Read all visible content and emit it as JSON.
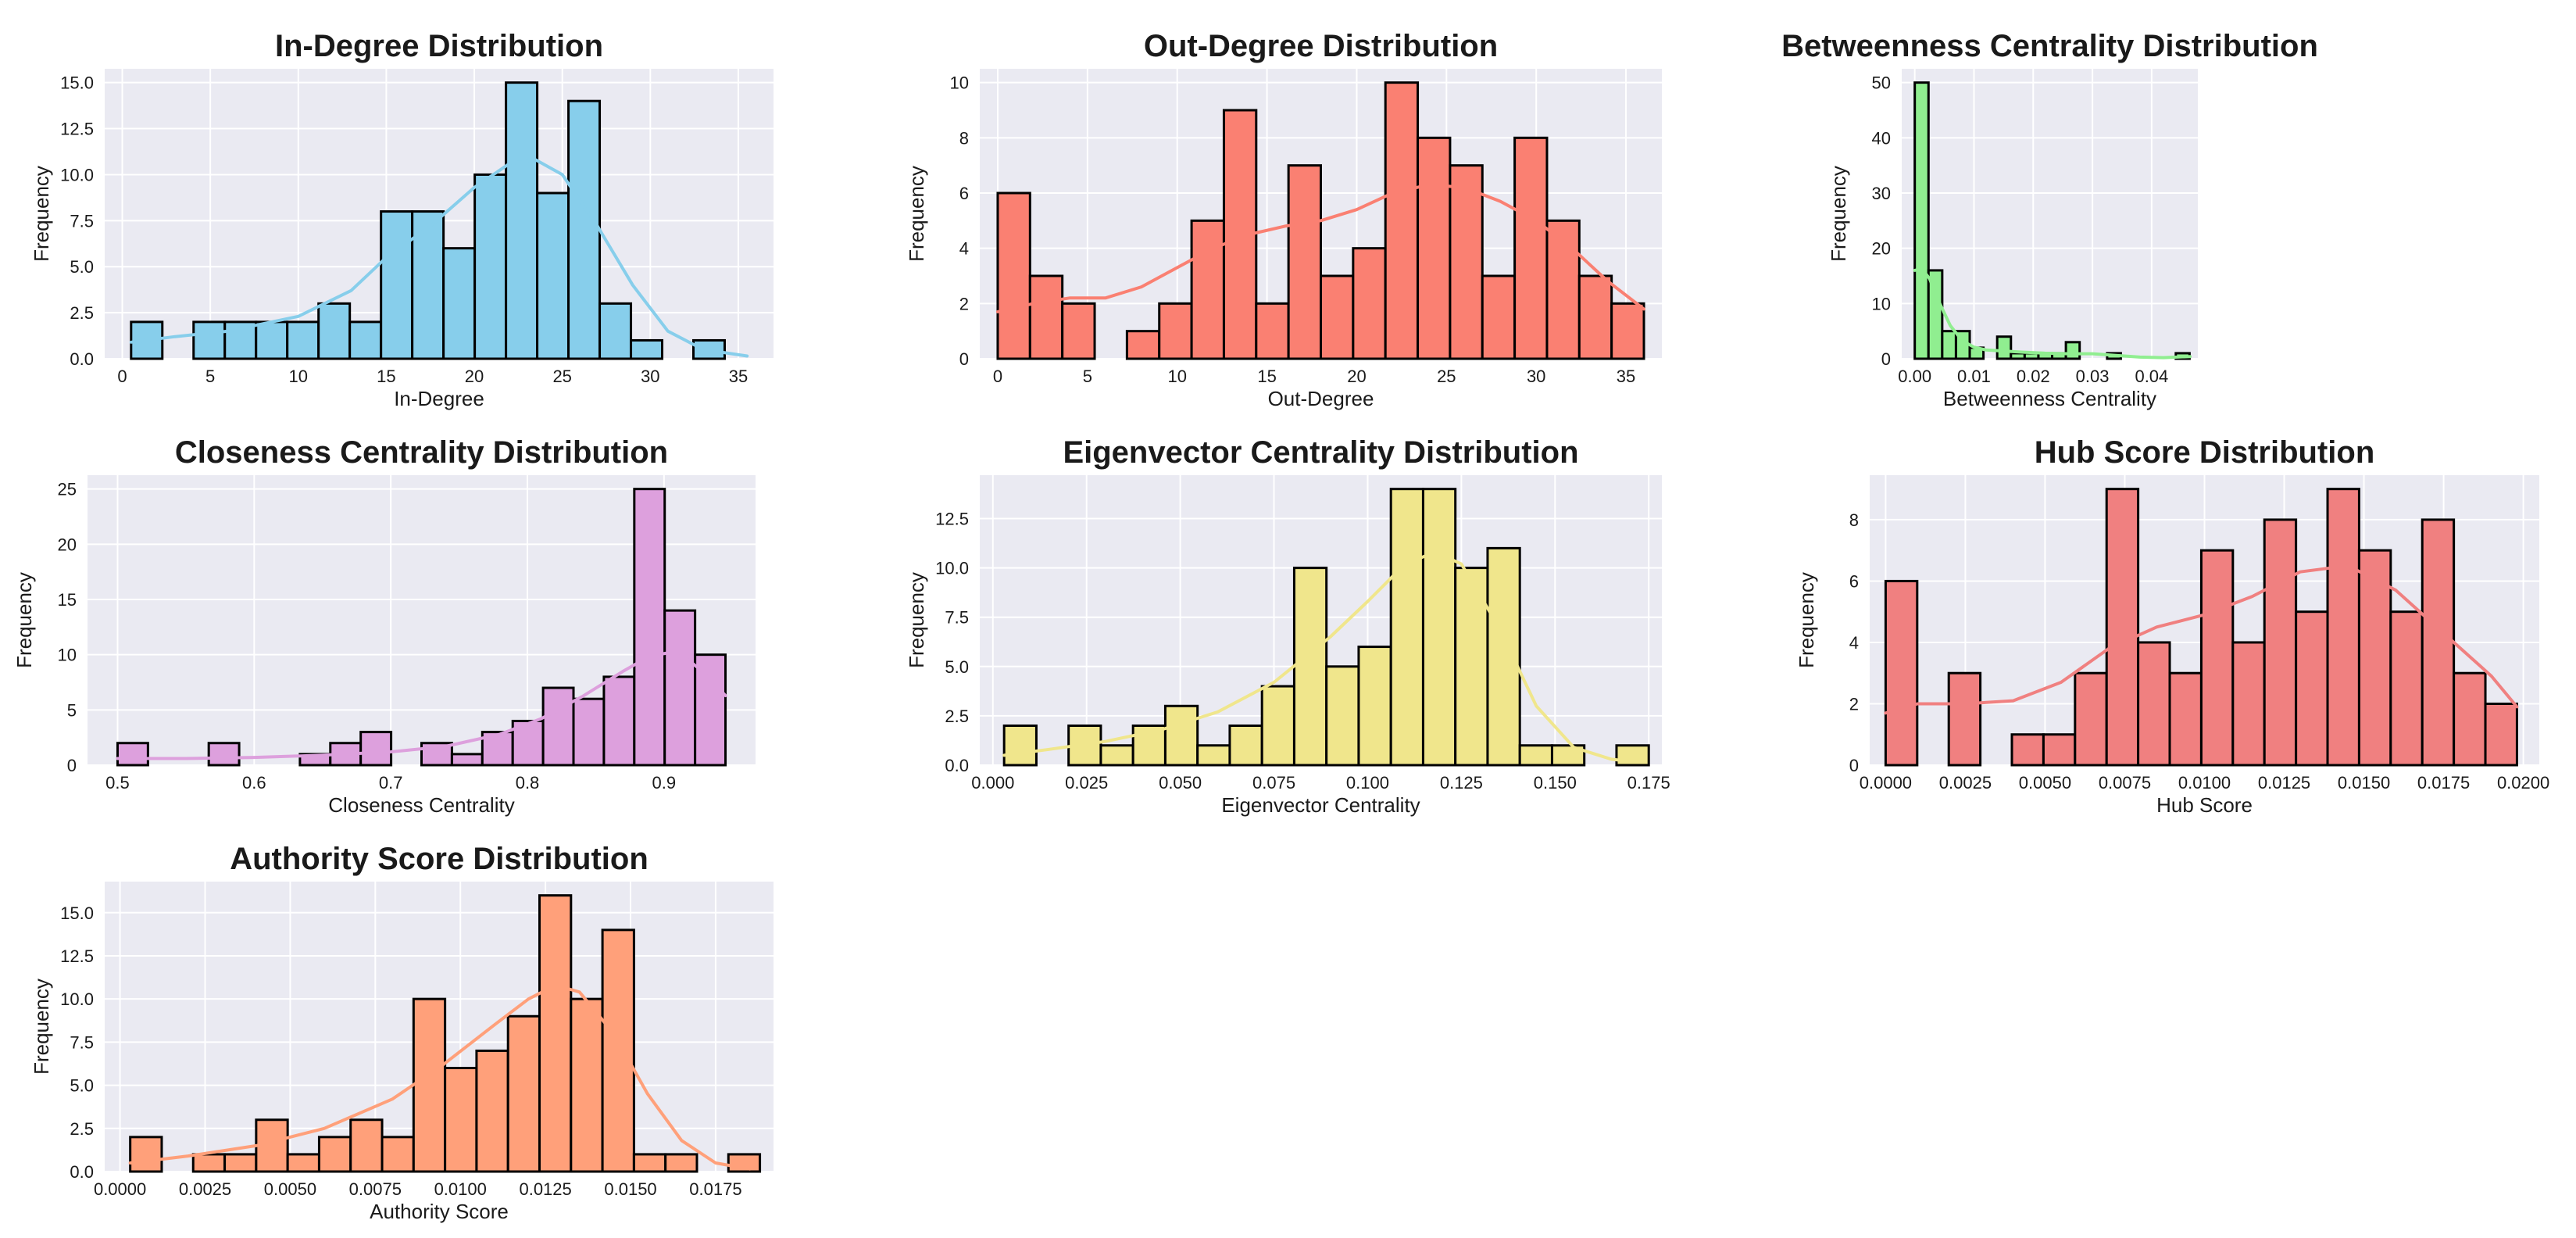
{
  "chart_data": [
    {
      "type": "bar",
      "title": "In-Degree Distribution",
      "xlabel": "In-Degree",
      "ylabel": "Frequency",
      "color": "#87ceeb",
      "kde_color": "#87ceeb",
      "xlim": [
        -1,
        37
      ],
      "ylim": [
        0,
        15.75
      ],
      "xticks": [
        0,
        5,
        10,
        15,
        20,
        25,
        30,
        35
      ],
      "xtick_labels": [
        "0",
        "5",
        "10",
        "15",
        "20",
        "25",
        "30",
        "35"
      ],
      "yticks": [
        0,
        2.5,
        5,
        7.5,
        10,
        12.5,
        15
      ],
      "ytick_labels": [
        "0.0",
        "2.5",
        "5.0",
        "7.5",
        "10.0",
        "12.5",
        "15.0"
      ],
      "bin_start": 0.5,
      "bin_width": 1.775,
      "counts": [
        2,
        0,
        2,
        2,
        2,
        2,
        3,
        2,
        8,
        8,
        6,
        10,
        15,
        9,
        14,
        3,
        1,
        0,
        1
      ],
      "kde": [
        [
          0.5,
          0.9
        ],
        [
          3,
          1.2
        ],
        [
          6,
          1.5
        ],
        [
          10,
          2.3
        ],
        [
          13,
          3.7
        ],
        [
          15,
          5.5
        ],
        [
          17.5,
          7.2
        ],
        [
          20,
          9.3
        ],
        [
          22,
          10.6
        ],
        [
          23.5,
          10.8
        ],
        [
          25,
          10.0
        ],
        [
          27,
          7.2
        ],
        [
          29,
          4.0
        ],
        [
          31,
          1.5
        ],
        [
          33,
          0.5
        ],
        [
          35.5,
          0.15
        ]
      ]
    },
    {
      "type": "bar",
      "title": "Out-Degree Distribution",
      "xlabel": "Out-Degree",
      "ylabel": "Frequency",
      "color": "#fa8072",
      "kde_color": "#fa8072",
      "xlim": [
        -1,
        37
      ],
      "ylim": [
        0,
        10.5
      ],
      "xticks": [
        0,
        5,
        10,
        15,
        20,
        25,
        30,
        35
      ],
      "xtick_labels": [
        "0",
        "5",
        "10",
        "15",
        "20",
        "25",
        "30",
        "35"
      ],
      "yticks": [
        0,
        2,
        4,
        6,
        8,
        10
      ],
      "ytick_labels": [
        "0",
        "2",
        "4",
        "6",
        "8",
        "10"
      ],
      "bin_start": 0,
      "bin_width": 1.8,
      "counts": [
        6,
        3,
        2,
        0,
        1,
        2,
        5,
        9,
        2,
        7,
        3,
        4,
        10,
        8,
        7,
        3,
        8,
        5,
        3,
        2
      ],
      "kde": [
        [
          0,
          1.7
        ],
        [
          2,
          2.0
        ],
        [
          4,
          2.2
        ],
        [
          6,
          2.2
        ],
        [
          8,
          2.6
        ],
        [
          10,
          3.3
        ],
        [
          12,
          4.0
        ],
        [
          14,
          4.5
        ],
        [
          16,
          4.8
        ],
        [
          18,
          5.0
        ],
        [
          20,
          5.4
        ],
        [
          22,
          6.0
        ],
        [
          24,
          6.3
        ],
        [
          26,
          6.2
        ],
        [
          28,
          5.7
        ],
        [
          30,
          5.0
        ],
        [
          32,
          4.0
        ],
        [
          34,
          2.8
        ],
        [
          36,
          1.8
        ]
      ]
    },
    {
      "type": "bar",
      "title": "Betweenness Centrality Distribution",
      "xlabel": "Betweenness Centrality",
      "ylabel": "Frequency",
      "color": "#90ee90",
      "kde_color": "#90ee90",
      "xlim": [
        -0.0022,
        0.0478
      ],
      "ylim": [
        0,
        52.5
      ],
      "xticks": [
        0,
        0.01,
        0.02,
        0.03,
        0.04
      ],
      "xtick_labels": [
        "0.00",
        "0.01",
        "0.02",
        "0.03",
        "0.04"
      ],
      "yticks": [
        0,
        10,
        20,
        30,
        40,
        50
      ],
      "ytick_labels": [
        "0",
        "10",
        "20",
        "30",
        "40",
        "50"
      ],
      "bin_start": 0,
      "bin_width": 0.00232,
      "counts": [
        50,
        16,
        5,
        5,
        2,
        0,
        4,
        1,
        1,
        1,
        1,
        3,
        0,
        0,
        1,
        0,
        0,
        0,
        0,
        1
      ],
      "kde": [
        [
          0,
          16
        ],
        [
          0.0012,
          16.3
        ],
        [
          0.0025,
          14.5
        ],
        [
          0.004,
          10.5
        ],
        [
          0.006,
          6.0
        ],
        [
          0.008,
          3.3
        ],
        [
          0.01,
          2.1
        ],
        [
          0.012,
          1.6
        ],
        [
          0.015,
          1.4
        ],
        [
          0.018,
          1.2
        ],
        [
          0.022,
          1.0
        ],
        [
          0.026,
          0.9
        ],
        [
          0.03,
          0.9
        ],
        [
          0.034,
          0.6
        ],
        [
          0.038,
          0.3
        ],
        [
          0.042,
          0.2
        ],
        [
          0.0465,
          0.4
        ]
      ]
    },
    {
      "type": "bar",
      "title": "Closeness Centrality Distribution",
      "xlabel": "Closeness Centrality",
      "ylabel": "Frequency",
      "color": "#dda0dd",
      "kde_color": "#dda0dd",
      "xlim": [
        0.478,
        0.967
      ],
      "ylim": [
        0,
        26.25
      ],
      "xticks": [
        0.5,
        0.6,
        0.7,
        0.8,
        0.9
      ],
      "xtick_labels": [
        "0.5",
        "0.6",
        "0.7",
        "0.8",
        "0.9"
      ],
      "yticks": [
        0,
        5,
        10,
        15,
        20,
        25
      ],
      "ytick_labels": [
        "0",
        "5",
        "10",
        "15",
        "20",
        "25"
      ],
      "bin_start": 0.5,
      "bin_width": 0.02225,
      "counts": [
        2,
        0,
        0,
        2,
        0,
        0,
        1,
        2,
        3,
        0,
        2,
        1,
        3,
        4,
        7,
        6,
        8,
        25,
        14,
        10
      ],
      "kde": [
        [
          0.5,
          0.6
        ],
        [
          0.55,
          0.6
        ],
        [
          0.6,
          0.7
        ],
        [
          0.65,
          0.9
        ],
        [
          0.7,
          1.2
        ],
        [
          0.74,
          1.7
        ],
        [
          0.78,
          2.8
        ],
        [
          0.81,
          4.2
        ],
        [
          0.84,
          6.2
        ],
        [
          0.87,
          8.5
        ],
        [
          0.89,
          9.9
        ],
        [
          0.91,
          10.3
        ],
        [
          0.93,
          8.3
        ],
        [
          0.945,
          6.3
        ]
      ]
    },
    {
      "type": "bar",
      "title": "Eigenvector Centrality Distribution",
      "xlabel": "Eigenvector Centrality",
      "ylabel": "Frequency",
      "color": "#f0e68c",
      "kde_color": "#f0e68c",
      "xlim": [
        -0.0035,
        0.1785
      ],
      "ylim": [
        0,
        14.7
      ],
      "xticks": [
        0,
        0.025,
        0.05,
        0.075,
        0.1,
        0.125,
        0.15,
        0.175
      ],
      "xtick_labels": [
        "0.000",
        "0.025",
        "0.050",
        "0.075",
        "0.100",
        "0.125",
        "0.150",
        "0.175"
      ],
      "yticks": [
        0,
        2.5,
        5,
        7.5,
        10,
        12.5
      ],
      "ytick_labels": [
        "0.0",
        "2.5",
        "5.0",
        "7.5",
        "10.0",
        "12.5"
      ],
      "bin_start": 0.003,
      "bin_width": 0.0086,
      "counts": [
        2,
        0,
        2,
        1,
        2,
        3,
        1,
        2,
        4,
        10,
        5,
        6,
        14,
        14,
        10,
        11,
        1,
        1,
        0,
        1
      ],
      "kde": [
        [
          0.003,
          0.5
        ],
        [
          0.015,
          0.8
        ],
        [
          0.03,
          1.2
        ],
        [
          0.045,
          1.8
        ],
        [
          0.06,
          2.7
        ],
        [
          0.075,
          4.2
        ],
        [
          0.09,
          6.5
        ],
        [
          0.1,
          8.3
        ],
        [
          0.11,
          10.2
        ],
        [
          0.118,
          10.8
        ],
        [
          0.125,
          10.2
        ],
        [
          0.135,
          7.0
        ],
        [
          0.145,
          3.0
        ],
        [
          0.155,
          0.9
        ],
        [
          0.165,
          0.3
        ],
        [
          0.172,
          0.15
        ]
      ]
    },
    {
      "type": "bar",
      "title": "Hub Score Distribution",
      "xlabel": "Hub Score",
      "ylabel": "Frequency",
      "color": "#f08080",
      "kde_color": "#f08080",
      "xlim": [
        -0.0005,
        0.0205
      ],
      "ylim": [
        0,
        9.45
      ],
      "xticks": [
        0,
        0.0025,
        0.005,
        0.0075,
        0.01,
        0.0125,
        0.015,
        0.0175,
        0.02
      ],
      "xtick_labels": [
        "0.0000",
        "0.0025",
        "0.0050",
        "0.0075",
        "0.0100",
        "0.0125",
        "0.0150",
        "0.0175",
        "0.0200"
      ],
      "yticks": [
        0,
        2,
        4,
        6,
        8
      ],
      "ytick_labels": [
        "0",
        "2",
        "4",
        "6",
        "8"
      ],
      "bin_start": 0,
      "bin_width": 0.00099,
      "counts": [
        6,
        0,
        3,
        0,
        1,
        1,
        3,
        9,
        4,
        3,
        7,
        4,
        8,
        5,
        9,
        7,
        5,
        8,
        3,
        2
      ],
      "kde": [
        [
          0,
          1.7
        ],
        [
          0.001,
          2.0
        ],
        [
          0.0025,
          2.0
        ],
        [
          0.004,
          2.1
        ],
        [
          0.0055,
          2.7
        ],
        [
          0.007,
          3.8
        ],
        [
          0.0085,
          4.5
        ],
        [
          0.01,
          4.9
        ],
        [
          0.0115,
          5.5
        ],
        [
          0.013,
          6.3
        ],
        [
          0.0145,
          6.5
        ],
        [
          0.016,
          5.7
        ],
        [
          0.0175,
          4.3
        ],
        [
          0.019,
          2.9
        ],
        [
          0.0198,
          1.9
        ]
      ]
    },
    {
      "type": "bar",
      "title": "Authority Score Distribution",
      "xlabel": "Authority Score",
      "ylabel": "Frequency",
      "color": "#ffa07a",
      "kde_color": "#ffa07a",
      "xlim": [
        -0.00045,
        0.0192
      ],
      "ylim": [
        0,
        16.8
      ],
      "xticks": [
        0,
        0.0025,
        0.005,
        0.0075,
        0.01,
        0.0125,
        0.015,
        0.0175
      ],
      "xtick_labels": [
        "0.0000",
        "0.0025",
        "0.0050",
        "0.0075",
        "0.0100",
        "0.0125",
        "0.0150",
        "0.0175"
      ],
      "yticks": [
        0,
        2.5,
        5,
        7.5,
        10,
        12.5,
        15
      ],
      "ytick_labels": [
        "0.0",
        "2.5",
        "5.0",
        "7.5",
        "10.0",
        "12.5",
        "15.0"
      ],
      "bin_start": 0.0003,
      "bin_width": 0.000925,
      "counts": [
        2,
        0,
        1,
        1,
        3,
        1,
        2,
        3,
        2,
        10,
        6,
        7,
        9,
        16,
        10,
        14,
        1,
        1,
        0,
        1
      ],
      "kde": [
        [
          0.0003,
          0.5
        ],
        [
          0.002,
          0.9
        ],
        [
          0.004,
          1.5
        ],
        [
          0.006,
          2.5
        ],
        [
          0.008,
          4.2
        ],
        [
          0.0095,
          6.2
        ],
        [
          0.011,
          8.5
        ],
        [
          0.012,
          10.0
        ],
        [
          0.0128,
          10.8
        ],
        [
          0.0135,
          10.4
        ],
        [
          0.0145,
          8.0
        ],
        [
          0.0155,
          4.5
        ],
        [
          0.0165,
          1.8
        ],
        [
          0.0175,
          0.5
        ],
        [
          0.0185,
          0.15
        ]
      ]
    }
  ]
}
